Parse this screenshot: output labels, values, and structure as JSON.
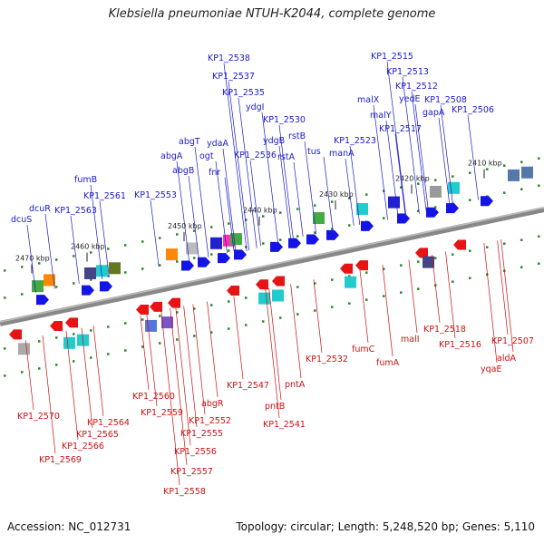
{
  "title": "Klebsiella pneumoniae NTUH-K2044, complete genome",
  "footer": {
    "accession": "Accession: NC_012731",
    "topology": "Topology: circular; Length: 5,248,520 bp; Genes: 5,110"
  },
  "ticks": [
    "2470 kbp",
    "2460 kbp",
    "2450 kbp",
    "2440 kbp",
    "2430 kbp",
    "2420 kbp",
    "2410 kbp"
  ],
  "top_labels": [
    "dcuS",
    "dcuR",
    "KP1_2563",
    "KP1_2561",
    "fumB",
    "KP1_2553",
    "abgB",
    "abgA",
    "abgT",
    "ogt",
    "ydaA",
    "fnr",
    "KP1_2538",
    "KP1_2537",
    "KP1_2535",
    "ydgI",
    "KP1_2536",
    "ydgB",
    "KP1_2530",
    "rstA",
    "rstB",
    "tus",
    "manA",
    "KP1_2523",
    "malX",
    "malY",
    "KP1_2515",
    "KP1_2513",
    "KP1_2512",
    "yedE",
    "KP1_2517",
    "gapA",
    "KP1_2508",
    "KP1_2506"
  ],
  "bottom_labels": [
    "KP1_2570",
    "KP1_2569",
    "KP1_2566",
    "KP1_2565",
    "KP1_2564",
    "KP1_2560",
    "KP1_2559",
    "KP1_2558",
    "KP1_2557",
    "KP1_2556",
    "KP1_2555",
    "KP1_2552",
    "abgR",
    "KP1_2547",
    "pntB",
    "KP1_2541",
    "pntA",
    "KP1_2532",
    "fumC",
    "fumA",
    "malI",
    "KP1_2518",
    "KP1_2516",
    "KP1_2507",
    "yqaE",
    "aldA"
  ],
  "colors": {
    "top_strand_label": "#1a1acc",
    "bottom_strand_label": "#cc1111",
    "forward_gene": "#1414e6",
    "reverse_gene": "#e61414",
    "backbone": "#888888"
  }
}
